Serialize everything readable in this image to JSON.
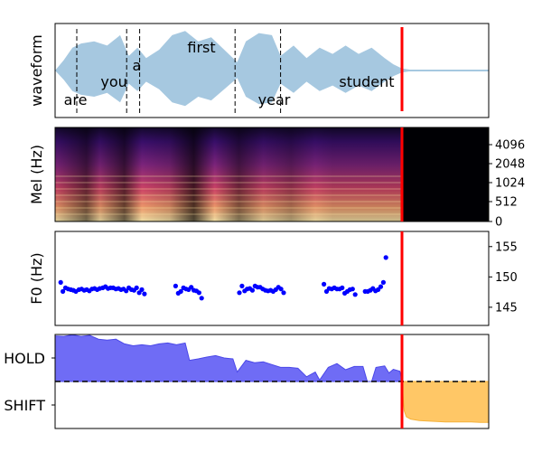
{
  "chart_data": [
    {
      "panel": "waveform",
      "type": "area",
      "ylabel": "waveform",
      "fill_color": "#a6c8e0",
      "word_boundaries": [
        0.05,
        0.165,
        0.195,
        0.415,
        0.52
      ],
      "words": [
        {
          "text": "are",
          "x": 0.02,
          "level": "low"
        },
        {
          "text": "you",
          "x": 0.105,
          "level": "mid"
        },
        {
          "text": "a",
          "x": 0.178,
          "level": "high"
        },
        {
          "text": "first",
          "x": 0.305,
          "level": "top"
        },
        {
          "text": "year",
          "x": 0.468,
          "level": "low"
        },
        {
          "text": "student",
          "x": 0.655,
          "level": "mid"
        }
      ],
      "envelope": [
        {
          "x": 0.0,
          "y": 0.0
        },
        {
          "x": 0.02,
          "y": 0.25
        },
        {
          "x": 0.04,
          "y": 0.55
        },
        {
          "x": 0.06,
          "y": 0.65
        },
        {
          "x": 0.09,
          "y": 0.7
        },
        {
          "x": 0.12,
          "y": 0.6
        },
        {
          "x": 0.15,
          "y": 0.85
        },
        {
          "x": 0.17,
          "y": 0.35
        },
        {
          "x": 0.19,
          "y": 0.55
        },
        {
          "x": 0.21,
          "y": 0.3
        },
        {
          "x": 0.24,
          "y": 0.5
        },
        {
          "x": 0.27,
          "y": 0.85
        },
        {
          "x": 0.3,
          "y": 0.95
        },
        {
          "x": 0.33,
          "y": 0.7
        },
        {
          "x": 0.36,
          "y": 0.8
        },
        {
          "x": 0.39,
          "y": 0.5
        },
        {
          "x": 0.42,
          "y": 0.2
        },
        {
          "x": 0.44,
          "y": 0.7
        },
        {
          "x": 0.47,
          "y": 0.9
        },
        {
          "x": 0.5,
          "y": 0.85
        },
        {
          "x": 0.52,
          "y": 0.35
        },
        {
          "x": 0.55,
          "y": 0.6
        },
        {
          "x": 0.58,
          "y": 0.3
        },
        {
          "x": 0.61,
          "y": 0.55
        },
        {
          "x": 0.64,
          "y": 0.4
        },
        {
          "x": 0.67,
          "y": 0.6
        },
        {
          "x": 0.7,
          "y": 0.4
        },
        {
          "x": 0.73,
          "y": 0.55
        },
        {
          "x": 0.76,
          "y": 0.3
        },
        {
          "x": 0.78,
          "y": 0.15
        },
        {
          "x": 0.8,
          "y": 0.05
        },
        {
          "x": 0.82,
          "y": 0.02
        },
        {
          "x": 1.0,
          "y": 0.0
        }
      ]
    },
    {
      "panel": "mel-spectrogram",
      "type": "heatmap",
      "ylabel": "Mel (Hz)",
      "yticks": [
        "0",
        "512",
        "1024",
        "2048",
        "4096"
      ],
      "content_end_fraction": 0.8
    },
    {
      "panel": "f0",
      "type": "scatter",
      "ylabel": "F0 (Hz)",
      "yticks": [
        145,
        150,
        155
      ],
      "ylim": [
        142,
        157.5
      ],
      "point_color": "#0000ff",
      "x": [
        0.013,
        0.018,
        0.024,
        0.03,
        0.036,
        0.042,
        0.048,
        0.055,
        0.061,
        0.067,
        0.073,
        0.079,
        0.085,
        0.091,
        0.097,
        0.103,
        0.11,
        0.116,
        0.122,
        0.128,
        0.134,
        0.14,
        0.146,
        0.152,
        0.158,
        0.164,
        0.17,
        0.176,
        0.182,
        0.188,
        0.194,
        0.2,
        0.206,
        0.278,
        0.284,
        0.29,
        0.296,
        0.302,
        0.308,
        0.314,
        0.32,
        0.326,
        0.332,
        0.338,
        0.425,
        0.431,
        0.437,
        0.443,
        0.449,
        0.455,
        0.461,
        0.467,
        0.473,
        0.479,
        0.485,
        0.491,
        0.497,
        0.503,
        0.509,
        0.515,
        0.521,
        0.527,
        0.62,
        0.626,
        0.632,
        0.638,
        0.644,
        0.65,
        0.656,
        0.662,
        0.668,
        0.674,
        0.68,
        0.686,
        0.692,
        0.715,
        0.721,
        0.727,
        0.733,
        0.739,
        0.745,
        0.751,
        0.757,
        0.763
      ],
      "y": [
        149.1,
        147.6,
        148.2,
        148.0,
        147.9,
        147.8,
        147.6,
        147.9,
        148.0,
        147.8,
        147.9,
        147.7,
        148.0,
        148.1,
        147.9,
        148.1,
        148.2,
        148.4,
        148.1,
        148.2,
        148.2,
        148.0,
        148.1,
        147.9,
        148.0,
        147.7,
        148.2,
        147.9,
        147.8,
        148.2,
        147.4,
        147.9,
        147.2,
        148.5,
        147.3,
        147.6,
        148.2,
        148.0,
        147.9,
        148.3,
        147.8,
        147.7,
        147.4,
        146.5,
        147.4,
        148.5,
        147.7,
        148.0,
        148.1,
        147.8,
        148.5,
        148.3,
        148.3,
        148.0,
        147.8,
        147.7,
        147.8,
        147.6,
        147.9,
        148.3,
        148.0,
        147.4,
        148.8,
        147.6,
        148.1,
        148.0,
        148.2,
        148.0,
        148.0,
        148.2,
        147.3,
        147.6,
        147.9,
        148.0,
        147.1,
        147.6,
        147.6,
        147.8,
        148.1,
        147.7,
        147.9,
        148.4,
        149.1,
        153.2
      ]
    },
    {
      "panel": "turn-taking",
      "type": "area",
      "yticks": [
        "HOLD",
        "SHIFT"
      ],
      "hold_color": "#6f6cf5",
      "shift_color": "#ffc766",
      "threshold_style": "dashed",
      "hold": [
        {
          "x": 0.0,
          "y": 0.97
        },
        {
          "x": 0.02,
          "y": 0.96
        },
        {
          "x": 0.04,
          "y": 0.99
        },
        {
          "x": 0.06,
          "y": 0.96
        },
        {
          "x": 0.08,
          "y": 0.98
        },
        {
          "x": 0.1,
          "y": 0.9
        },
        {
          "x": 0.12,
          "y": 0.88
        },
        {
          "x": 0.14,
          "y": 0.9
        },
        {
          "x": 0.16,
          "y": 0.8
        },
        {
          "x": 0.18,
          "y": 0.76
        },
        {
          "x": 0.2,
          "y": 0.78
        },
        {
          "x": 0.22,
          "y": 0.76
        },
        {
          "x": 0.24,
          "y": 0.8
        },
        {
          "x": 0.26,
          "y": 0.82
        },
        {
          "x": 0.28,
          "y": 0.78
        },
        {
          "x": 0.3,
          "y": 0.82
        },
        {
          "x": 0.31,
          "y": 0.45
        },
        {
          "x": 0.33,
          "y": 0.48
        },
        {
          "x": 0.35,
          "y": 0.52
        },
        {
          "x": 0.37,
          "y": 0.55
        },
        {
          "x": 0.39,
          "y": 0.5
        },
        {
          "x": 0.41,
          "y": 0.48
        },
        {
          "x": 0.42,
          "y": 0.2
        },
        {
          "x": 0.44,
          "y": 0.45
        },
        {
          "x": 0.46,
          "y": 0.4
        },
        {
          "x": 0.48,
          "y": 0.42
        },
        {
          "x": 0.5,
          "y": 0.36
        },
        {
          "x": 0.52,
          "y": 0.3
        },
        {
          "x": 0.54,
          "y": 0.3
        },
        {
          "x": 0.56,
          "y": 0.28
        },
        {
          "x": 0.58,
          "y": 0.1
        },
        {
          "x": 0.6,
          "y": 0.2
        },
        {
          "x": 0.61,
          "y": 0.03
        },
        {
          "x": 0.63,
          "y": 0.3
        },
        {
          "x": 0.65,
          "y": 0.38
        },
        {
          "x": 0.67,
          "y": 0.25
        },
        {
          "x": 0.69,
          "y": 0.32
        },
        {
          "x": 0.71,
          "y": 0.32
        },
        {
          "x": 0.72,
          "y": 0.0
        },
        {
          "x": 0.73,
          "y": 0.0
        },
        {
          "x": 0.74,
          "y": 0.3
        },
        {
          "x": 0.76,
          "y": 0.33
        },
        {
          "x": 0.77,
          "y": 0.18
        },
        {
          "x": 0.78,
          "y": 0.26
        },
        {
          "x": 0.795,
          "y": 0.22
        },
        {
          "x": 0.8,
          "y": 0.0
        }
      ],
      "shift": [
        {
          "x": 0.8,
          "y": 0.0
        },
        {
          "x": 0.805,
          "y": 0.62
        },
        {
          "x": 0.81,
          "y": 0.75
        },
        {
          "x": 0.82,
          "y": 0.8
        },
        {
          "x": 0.84,
          "y": 0.83
        },
        {
          "x": 0.86,
          "y": 0.84
        },
        {
          "x": 0.88,
          "y": 0.85
        },
        {
          "x": 0.9,
          "y": 0.86
        },
        {
          "x": 0.92,
          "y": 0.86
        },
        {
          "x": 0.94,
          "y": 0.86
        },
        {
          "x": 0.96,
          "y": 0.86
        },
        {
          "x": 0.98,
          "y": 0.87
        },
        {
          "x": 1.0,
          "y": 0.87
        }
      ]
    }
  ],
  "cursor": {
    "x": 0.8,
    "color": "#ff0000"
  }
}
